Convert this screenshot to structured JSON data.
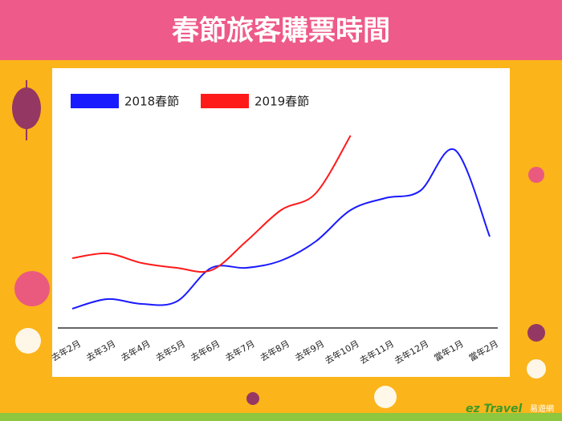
{
  "chart_data": {
    "type": "line",
    "title": "春節旅客購票時間",
    "categories": [
      "去年2月",
      "去年3月",
      "去年4月",
      "去年5月",
      "去年6月",
      "去年7月",
      "去年8月",
      "去年9月",
      "去年10月",
      "去年11月",
      "去年12月",
      "當年1月",
      "當年2月"
    ],
    "series": [
      {
        "name": "2018春節",
        "color": "#1a1aff",
        "values": [
          8,
          12,
          10,
          11,
          25,
          25,
          28,
          36,
          49,
          54,
          57,
          74,
          38
        ]
      },
      {
        "name": "2019春節",
        "color": "#ff1a1a",
        "values": [
          29,
          31,
          27,
          25,
          24,
          36,
          49,
          56,
          80,
          null,
          null,
          null,
          null
        ]
      }
    ],
    "ylim": [
      0,
      100
    ],
    "legend": "top-left"
  },
  "logo": {
    "brand": "ez Travel",
    "sub": "易遊網"
  }
}
